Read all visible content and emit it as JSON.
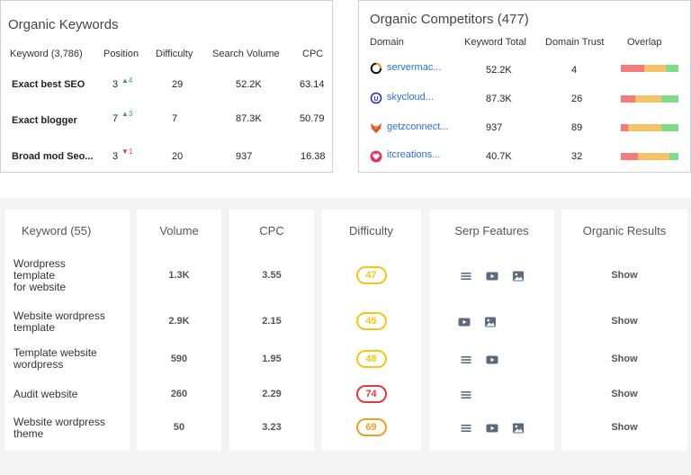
{
  "organic_keywords": {
    "title": "Organic Keywords",
    "headers": [
      "Keyword (3,786)",
      "Position",
      "Difficulty",
      "Search Volume",
      "CPC"
    ],
    "rows": [
      {
        "keyword": "Exact best SEO",
        "position": "3",
        "change": "4",
        "direction": "up",
        "difficulty": "29",
        "volume": "52.2K",
        "cpc": "63.14"
      },
      {
        "keyword": "Exact blogger",
        "position": "7",
        "change": "3",
        "direction": "up",
        "difficulty": "7",
        "volume": "87.3K",
        "cpc": "50.79"
      },
      {
        "keyword": "Broad mod Seo...",
        "position": "3",
        "change": "1",
        "direction": "down",
        "difficulty": "20",
        "volume": "937",
        "cpc": "16.38"
      }
    ]
  },
  "organic_competitors": {
    "title": "Organic Competitors (477)",
    "headers": [
      "Domain",
      "Keyword Total",
      "Domain Trust",
      "Overlap"
    ],
    "rows": [
      {
        "icon": "ring-logo-icon",
        "domain": "servermac...",
        "keyword_total": "52.2K",
        "trust": "4",
        "overlap": [
          0.4,
          0.38,
          0.22
        ]
      },
      {
        "icon": "u-logo-icon",
        "domain": "skycloud...",
        "keyword_total": "87.3K",
        "trust": "26",
        "overlap": [
          0.25,
          0.45,
          0.3
        ]
      },
      {
        "icon": "fox-logo-icon",
        "domain": "getzconnect...",
        "keyword_total": "937",
        "trust": "89",
        "overlap": [
          0.12,
          0.58,
          0.3
        ]
      },
      {
        "icon": "heart-logo-icon",
        "domain": "itcreations...",
        "keyword_total": "40.7K",
        "trust": "32",
        "overlap": [
          0.3,
          0.55,
          0.15
        ]
      }
    ],
    "overlap_colors": [
      "#f27b7b",
      "#f5c36b",
      "#7fdc8a"
    ]
  },
  "keyword_table": {
    "headers": {
      "keyword": "Keyword (55)",
      "volume": "Volume",
      "cpc": "CPC",
      "difficulty": "Difficulty",
      "serp": "Serp Features",
      "organic": "Organic Results"
    },
    "rows": [
      {
        "keyword_lines": [
          "Wordpress",
          "template",
          "for website"
        ],
        "volume": "1.3K",
        "cpc": "3.55",
        "difficulty": "47",
        "level": "yellow",
        "serp": [
          "list-icon",
          "video-icon",
          "image-icon"
        ],
        "organic": "Show"
      },
      {
        "keyword_lines": [
          "Website wordpress",
          "template"
        ],
        "volume": "2.9K",
        "cpc": "2.15",
        "difficulty": "45",
        "level": "yellow",
        "serp": [
          "video-icon",
          "image-icon"
        ],
        "organic": "Show"
      },
      {
        "keyword_lines": [
          "Template website",
          "wordpress"
        ],
        "volume": "590",
        "cpc": "1.95",
        "difficulty": "48",
        "level": "yellow",
        "serp": [
          "list-icon",
          "video-icon"
        ],
        "organic": "Show"
      },
      {
        "keyword_lines": [
          "Audit website"
        ],
        "volume": "260",
        "cpc": "2.29",
        "difficulty": "74",
        "level": "red",
        "serp": [
          "list-icon"
        ],
        "organic": "Show"
      },
      {
        "keyword_lines": [
          "Website wordpress",
          "theme"
        ],
        "volume": "50",
        "cpc": "3.23",
        "difficulty": "69",
        "level": "orange",
        "serp": [
          "list-icon",
          "video-icon",
          "image-icon"
        ],
        "organic": "Show"
      }
    ],
    "level_colors": {
      "yellow": "#f5c518",
      "red": "#e23b3b",
      "orange": "#f0a020"
    }
  }
}
